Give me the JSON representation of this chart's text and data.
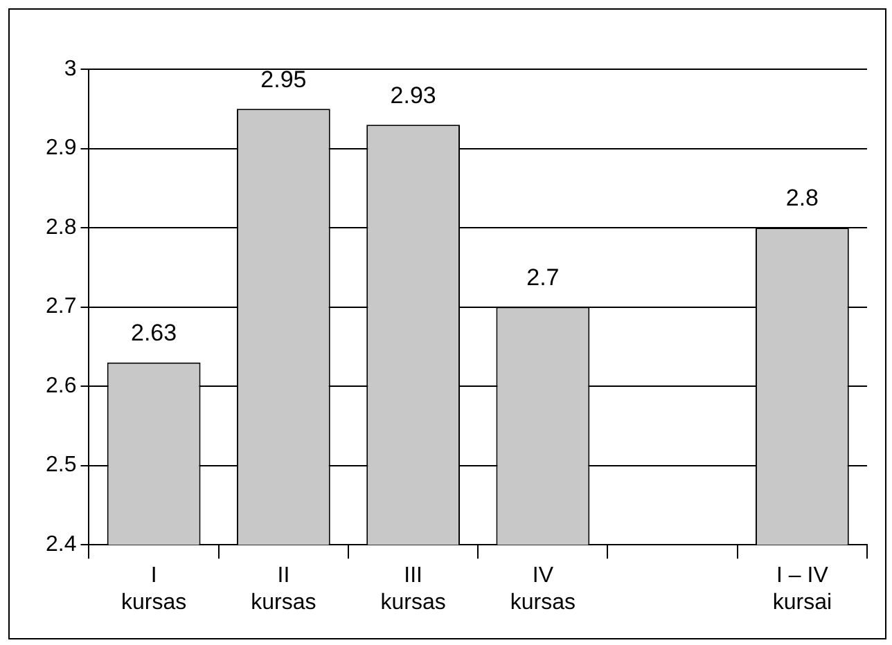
{
  "chart_data": {
    "type": "bar",
    "categories": [
      "I kursas",
      "II kursas",
      "III kursas",
      "IV kursas",
      null,
      "I – IV kursai"
    ],
    "values": [
      2.63,
      2.95,
      2.93,
      2.7,
      null,
      2.8
    ],
    "color": "#c8c8c8",
    "ylim": [
      2.4,
      3
    ],
    "yticks": [
      2.4,
      2.5,
      2.6,
      2.7,
      2.8,
      2.9,
      3
    ],
    "grid": "y",
    "data_labels": true
  }
}
